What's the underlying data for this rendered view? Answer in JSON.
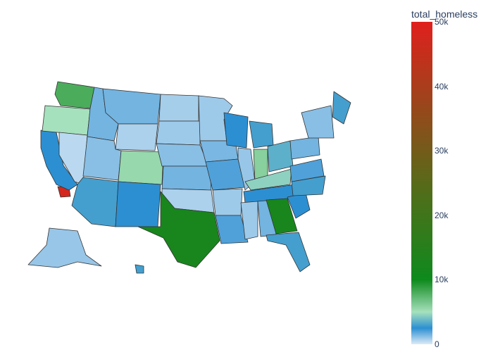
{
  "colorbar": {
    "title": "total_homeless",
    "ticks": [
      "0",
      "10k",
      "20k",
      "30k",
      "40k",
      "50k"
    ],
    "tick_values": [
      0,
      10000,
      20000,
      30000,
      40000,
      50000
    ],
    "range": [
      0,
      50000
    ],
    "colorscale": [
      [
        0.0,
        "#deebf7"
      ],
      [
        0.05,
        "#2c8fd2"
      ],
      [
        0.1,
        "#a6e1bd"
      ],
      [
        0.2,
        "#0e8a1c"
      ],
      [
        0.5,
        "#586a1a"
      ],
      [
        1.0,
        "#e0201d"
      ]
    ]
  },
  "chart_data": {
    "type": "heatmap",
    "map_type": "choropleth",
    "scope": "usa",
    "color_variable": "total_homeless",
    "regions": [
      {
        "name": "California (Los Angeles area)",
        "value": 48000
      },
      {
        "name": "California (coast)",
        "value": 2500
      },
      {
        "name": "Washington (west)",
        "value": 8000
      },
      {
        "name": "Oregon",
        "value": 5000
      },
      {
        "name": "Nevada",
        "value": 500
      },
      {
        "name": "Idaho",
        "value": 1500
      },
      {
        "name": "Montana",
        "value": 1500
      },
      {
        "name": "Wyoming",
        "value": 700
      },
      {
        "name": "Utah",
        "value": 1200
      },
      {
        "name": "Colorado",
        "value": 5500
      },
      {
        "name": "Arizona",
        "value": 3000
      },
      {
        "name": "New Mexico",
        "value": 2500
      },
      {
        "name": "North Dakota",
        "value": 800
      },
      {
        "name": "South Dakota",
        "value": 900
      },
      {
        "name": "Nebraska",
        "value": 1200
      },
      {
        "name": "Kansas",
        "value": 1500
      },
      {
        "name": "Oklahoma",
        "value": 700
      },
      {
        "name": "Texas",
        "value": 12000
      },
      {
        "name": "Minnesota",
        "value": 900
      },
      {
        "name": "Iowa",
        "value": 1400
      },
      {
        "name": "Missouri",
        "value": 2000
      },
      {
        "name": "Arkansas",
        "value": 900
      },
      {
        "name": "Louisiana",
        "value": 2000
      },
      {
        "name": "Wisconsin",
        "value": 2500
      },
      {
        "name": "Illinois",
        "value": 1000
      },
      {
        "name": "Michigan",
        "value": 3000
      },
      {
        "name": "Indiana",
        "value": 6000
      },
      {
        "name": "Ohio",
        "value": 3500
      },
      {
        "name": "Kentucky",
        "value": 4500
      },
      {
        "name": "Tennessee",
        "value": 2500
      },
      {
        "name": "Mississippi",
        "value": 900
      },
      {
        "name": "Alabama",
        "value": 1500
      },
      {
        "name": "Georgia",
        "value": 12000
      },
      {
        "name": "Florida",
        "value": 3000
      },
      {
        "name": "South Carolina",
        "value": 2500
      },
      {
        "name": "North Carolina",
        "value": 3000
      },
      {
        "name": "Virginia",
        "value": 2000
      },
      {
        "name": "Pennsylvania",
        "value": 1500
      },
      {
        "name": "New York",
        "value": 1200
      },
      {
        "name": "Maine",
        "value": 3000
      },
      {
        "name": "Alaska",
        "value": 1000
      },
      {
        "name": "Hawaii",
        "value": 3000
      }
    ]
  }
}
